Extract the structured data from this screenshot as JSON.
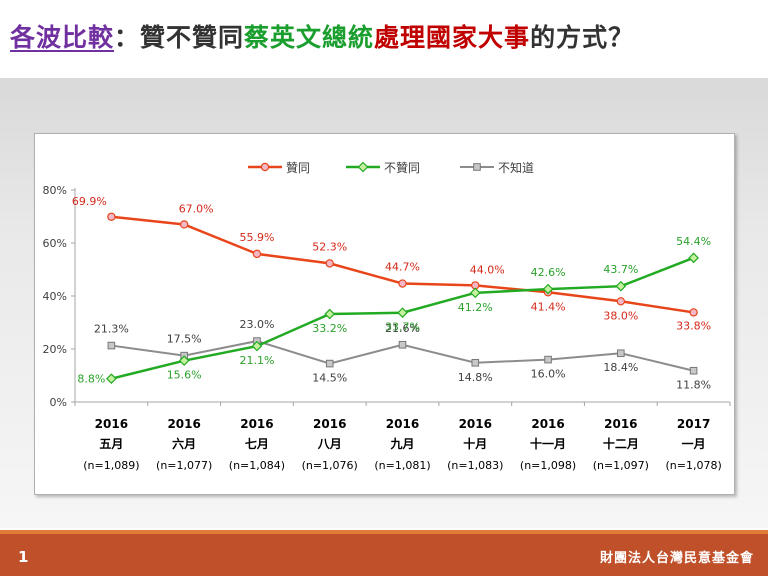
{
  "title": {
    "part1": "各波比較",
    "part2": "：贊不贊同",
    "part3": "蔡英文總統",
    "part4": "處理國家大事",
    "part5": "的方式？"
  },
  "footer": {
    "page_number": "1",
    "organization": "財團法人台灣民意基金會"
  },
  "colors": {
    "approve": "#e8451a",
    "disapprove": "#22aa22",
    "unknown": "#8c8c8c",
    "approve_label": "#d42a1a",
    "disapprove_label": "#2aa12a",
    "unknown_label": "#404040",
    "footer": "#c0502a"
  },
  "chart_data": {
    "type": "line",
    "categories": [
      {
        "year": "2016",
        "month": "五月",
        "n": "(n=1,089)"
      },
      {
        "year": "2016",
        "month": "六月",
        "n": "(n=1,077)"
      },
      {
        "year": "2016",
        "month": "七月",
        "n": "(n=1,084)"
      },
      {
        "year": "2016",
        "month": "八月",
        "n": "(n=1,076)"
      },
      {
        "year": "2016",
        "month": "九月",
        "n": "(n=1,081)"
      },
      {
        "year": "2016",
        "month": "十月",
        "n": "(n=1,083)"
      },
      {
        "year": "2016",
        "month": "十一月",
        "n": "(n=1,098)"
      },
      {
        "year": "2016",
        "month": "十二月",
        "n": "(n=1,097)"
      },
      {
        "year": "2017",
        "month": "一月",
        "n": "(n=1,078)"
      }
    ],
    "series": [
      {
        "name": "贊同",
        "key": "approve",
        "marker": "circle",
        "values": [
          69.9,
          67.0,
          55.9,
          52.3,
          44.7,
          44.0,
          41.4,
          38.0,
          33.8
        ],
        "labels": [
          "69.9%",
          "67.0%",
          "55.9%",
          "52.3%",
          "44.7%",
          "44.0%",
          "41.4%",
          "38.0%",
          "33.8%"
        ]
      },
      {
        "name": "不贊同",
        "key": "disapprove",
        "marker": "diamond",
        "values": [
          8.8,
          15.6,
          21.1,
          33.2,
          33.7,
          41.2,
          42.6,
          43.7,
          54.4
        ],
        "labels": [
          "8.8%",
          "15.6%",
          "21.1%",
          "33.2%",
          "33.7%",
          "41.2%",
          "42.6%",
          "43.7%",
          "54.4%"
        ]
      },
      {
        "name": "不知道",
        "key": "unknown",
        "marker": "square",
        "values": [
          21.3,
          17.5,
          23.0,
          14.5,
          21.6,
          14.8,
          16.0,
          18.4,
          11.8
        ],
        "labels": [
          "21.3%",
          "17.5%",
          "23.0%",
          "14.5%",
          "21.6%",
          "14.8%",
          "16.0%",
          "18.4%",
          "11.8%"
        ]
      }
    ],
    "y_ticks": [
      "0%",
      "20%",
      "40%",
      "60%",
      "80%"
    ],
    "ylim": [
      0,
      80
    ],
    "legend_position": "top-center",
    "grid": false
  }
}
